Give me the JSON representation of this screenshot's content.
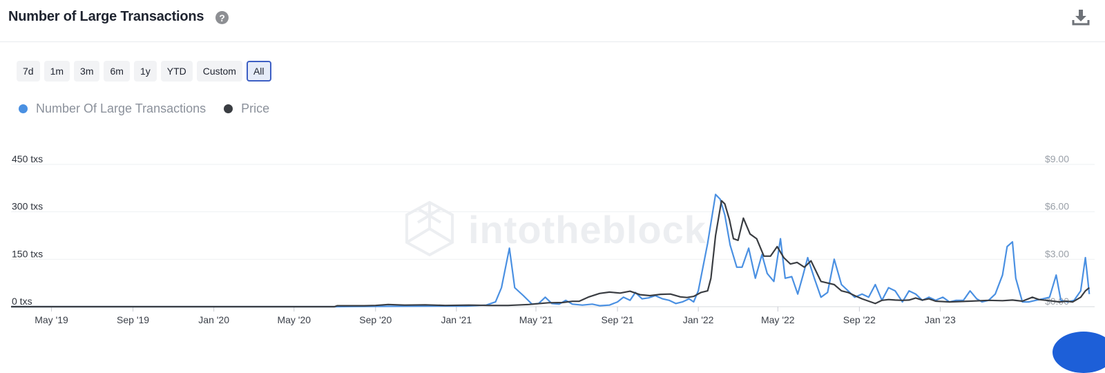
{
  "header": {
    "title": "Number of Large Transactions",
    "help_icon": "question-circle-icon",
    "download_icon": "download-icon"
  },
  "ranges": [
    "7d",
    "1m",
    "3m",
    "6m",
    "1y",
    "YTD",
    "Custom",
    "All"
  ],
  "active_range": "All",
  "colors": {
    "transactions": "#4a90e2",
    "price": "#3a3d42",
    "grid": "#eef0f3",
    "active_border": "#3d5fc4"
  },
  "watermark": "intotheblock",
  "chart_data": {
    "type": "line",
    "title": "Number of Large Transactions",
    "grid": true,
    "legend_placement": "top-left",
    "x_ticks": [
      "May '19",
      "Sep '19",
      "Jan '20",
      "May '20",
      "Sep '20",
      "Jan '21",
      "May '21",
      "Sep '21",
      "Jan '22",
      "May '22",
      "Sep '22",
      "Jan '23"
    ],
    "y_left": {
      "ticks": [
        "0 txs",
        "150 txs",
        "300 txs",
        "450 txs"
      ],
      "range": [
        0,
        450
      ]
    },
    "y_right": {
      "ticks": [
        "$0.00",
        "$3.00",
        "$6.00",
        "$9.00"
      ],
      "range": [
        0,
        9
      ]
    },
    "series": [
      {
        "name": "Number Of Large Transactions",
        "axis": "left",
        "color": "#4a90e2",
        "points": [
          [
            "2019-03-01",
            0
          ],
          [
            "2020-07-01",
            0
          ],
          [
            "2020-09-15",
            1
          ],
          [
            "2020-12-01",
            2
          ],
          [
            "2021-01-15",
            2
          ],
          [
            "2021-02-15",
            5
          ],
          [
            "2021-03-01",
            15
          ],
          [
            "2021-03-10",
            60
          ],
          [
            "2021-03-22",
            185
          ],
          [
            "2021-03-30",
            60
          ],
          [
            "2021-04-12",
            35
          ],
          [
            "2021-04-25",
            8
          ],
          [
            "2021-05-05",
            10
          ],
          [
            "2021-05-15",
            30
          ],
          [
            "2021-05-25",
            10
          ],
          [
            "2021-06-05",
            8
          ],
          [
            "2021-06-15",
            20
          ],
          [
            "2021-06-25",
            8
          ],
          [
            "2021-07-10",
            5
          ],
          [
            "2021-07-25",
            8
          ],
          [
            "2021-08-05",
            3
          ],
          [
            "2021-08-20",
            5
          ],
          [
            "2021-09-01",
            15
          ],
          [
            "2021-09-10",
            30
          ],
          [
            "2021-09-20",
            20
          ],
          [
            "2021-09-28",
            45
          ],
          [
            "2021-10-08",
            25
          ],
          [
            "2021-10-18",
            28
          ],
          [
            "2021-10-28",
            35
          ],
          [
            "2021-11-08",
            25
          ],
          [
            "2021-11-18",
            20
          ],
          [
            "2021-11-28",
            10
          ],
          [
            "2021-12-08",
            15
          ],
          [
            "2021-12-18",
            25
          ],
          [
            "2021-12-25",
            15
          ],
          [
            "2022-01-01",
            50
          ],
          [
            "2022-01-15",
            200
          ],
          [
            "2022-01-27",
            355
          ],
          [
            "2022-02-03",
            340
          ],
          [
            "2022-02-10",
            290
          ],
          [
            "2022-02-18",
            195
          ],
          [
            "2022-02-28",
            125
          ],
          [
            "2022-03-08",
            125
          ],
          [
            "2022-03-18",
            185
          ],
          [
            "2022-03-28",
            90
          ],
          [
            "2022-04-07",
            165
          ],
          [
            "2022-04-15",
            105
          ],
          [
            "2022-04-25",
            80
          ],
          [
            "2022-05-05",
            215
          ],
          [
            "2022-05-12",
            90
          ],
          [
            "2022-05-22",
            95
          ],
          [
            "2022-05-31",
            40
          ],
          [
            "2022-06-08",
            100
          ],
          [
            "2022-06-15",
            155
          ],
          [
            "2022-06-25",
            90
          ],
          [
            "2022-07-05",
            30
          ],
          [
            "2022-07-15",
            45
          ],
          [
            "2022-07-25",
            150
          ],
          [
            "2022-08-05",
            70
          ],
          [
            "2022-08-15",
            50
          ],
          [
            "2022-08-25",
            30
          ],
          [
            "2022-09-05",
            40
          ],
          [
            "2022-09-15",
            30
          ],
          [
            "2022-09-25",
            70
          ],
          [
            "2022-10-05",
            20
          ],
          [
            "2022-10-15",
            60
          ],
          [
            "2022-10-25",
            50
          ],
          [
            "2022-11-05",
            15
          ],
          [
            "2022-11-15",
            50
          ],
          [
            "2022-11-25",
            40
          ],
          [
            "2022-12-05",
            20
          ],
          [
            "2022-12-15",
            30
          ],
          [
            "2022-12-25",
            20
          ],
          [
            "2023-01-05",
            30
          ],
          [
            "2023-01-15",
            15
          ],
          [
            "2023-01-25",
            20
          ],
          [
            "2023-02-05",
            20
          ],
          [
            "2023-02-15",
            50
          ],
          [
            "2023-02-25",
            25
          ],
          [
            "2023-03-05",
            15
          ],
          [
            "2023-03-15",
            20
          ],
          [
            "2023-03-25",
            40
          ],
          [
            "2023-04-05",
            100
          ],
          [
            "2023-04-12",
            190
          ],
          [
            "2023-04-20",
            205
          ],
          [
            "2023-04-25",
            90
          ],
          [
            "2023-05-05",
            15
          ],
          [
            "2023-05-15",
            15
          ],
          [
            "2023-05-25",
            20
          ],
          [
            "2023-06-05",
            25
          ],
          [
            "2023-06-15",
            30
          ],
          [
            "2023-06-25",
            100
          ],
          [
            "2023-07-02",
            20
          ],
          [
            "2023-07-12",
            15
          ],
          [
            "2023-07-22",
            20
          ],
          [
            "2023-08-01",
            50
          ],
          [
            "2023-08-08",
            155
          ],
          [
            "2023-08-14",
            40
          ]
        ]
      },
      {
        "name": "Price",
        "axis": "right",
        "color": "#3a3d42",
        "points": [
          [
            "2019-03-01",
            0
          ],
          [
            "2020-07-01",
            0
          ],
          [
            "2020-07-05",
            0.06
          ],
          [
            "2020-08-15",
            0.06
          ],
          [
            "2020-09-01",
            0.08
          ],
          [
            "2020-09-20",
            0.14
          ],
          [
            "2020-10-15",
            0.1
          ],
          [
            "2020-11-15",
            0.12
          ],
          [
            "2020-12-15",
            0.08
          ],
          [
            "2021-01-20",
            0.1
          ],
          [
            "2021-02-20",
            0.08
          ],
          [
            "2021-03-20",
            0.08
          ],
          [
            "2021-04-20",
            0.14
          ],
          [
            "2021-05-20",
            0.25
          ],
          [
            "2021-06-10",
            0.26
          ],
          [
            "2021-06-25",
            0.34
          ],
          [
            "2021-07-05",
            0.34
          ],
          [
            "2021-07-20",
            0.62
          ],
          [
            "2021-08-05",
            0.84
          ],
          [
            "2021-08-20",
            0.92
          ],
          [
            "2021-09-05",
            0.86
          ],
          [
            "2021-09-20",
            0.98
          ],
          [
            "2021-10-05",
            0.76
          ],
          [
            "2021-10-20",
            0.7
          ],
          [
            "2021-11-05",
            0.78
          ],
          [
            "2021-11-20",
            0.8
          ],
          [
            "2021-12-05",
            0.62
          ],
          [
            "2021-12-15",
            0.58
          ],
          [
            "2021-12-25",
            0.65
          ],
          [
            "2022-01-05",
            0.9
          ],
          [
            "2022-01-15",
            1.0
          ],
          [
            "2022-01-20",
            1.8
          ],
          [
            "2022-01-27",
            4.5
          ],
          [
            "2022-02-05",
            6.7
          ],
          [
            "2022-02-10",
            6.5
          ],
          [
            "2022-02-17",
            5.5
          ],
          [
            "2022-02-23",
            4.3
          ],
          [
            "2022-03-02",
            4.2
          ],
          [
            "2022-03-10",
            5.6
          ],
          [
            "2022-03-20",
            4.6
          ],
          [
            "2022-03-30",
            4.3
          ],
          [
            "2022-04-10",
            3.2
          ],
          [
            "2022-04-20",
            3.2
          ],
          [
            "2022-04-30",
            3.8
          ],
          [
            "2022-05-10",
            3.1
          ],
          [
            "2022-05-20",
            2.7
          ],
          [
            "2022-05-30",
            2.8
          ],
          [
            "2022-06-10",
            2.5
          ],
          [
            "2022-06-20",
            2.9
          ],
          [
            "2022-07-05",
            1.6
          ],
          [
            "2022-07-15",
            1.5
          ],
          [
            "2022-07-25",
            1.4
          ],
          [
            "2022-08-05",
            1.0
          ],
          [
            "2022-08-15",
            0.9
          ],
          [
            "2022-08-25",
            0.7
          ],
          [
            "2022-09-05",
            0.5
          ],
          [
            "2022-09-15",
            0.35
          ],
          [
            "2022-09-25",
            0.2
          ],
          [
            "2022-10-05",
            0.4
          ],
          [
            "2022-10-15",
            0.45
          ],
          [
            "2022-10-25",
            0.42
          ],
          [
            "2022-11-05",
            0.4
          ],
          [
            "2022-11-15",
            0.42
          ],
          [
            "2022-11-25",
            0.55
          ],
          [
            "2022-12-05",
            0.42
          ],
          [
            "2022-12-15",
            0.5
          ],
          [
            "2022-12-25",
            0.35
          ],
          [
            "2023-01-15",
            0.3
          ],
          [
            "2023-02-15",
            0.35
          ],
          [
            "2023-03-15",
            0.4
          ],
          [
            "2023-04-05",
            0.38
          ],
          [
            "2023-04-20",
            0.42
          ],
          [
            "2023-05-05",
            0.35
          ],
          [
            "2023-05-20",
            0.6
          ],
          [
            "2023-05-30",
            0.45
          ],
          [
            "2023-06-15",
            0.38
          ],
          [
            "2023-06-30",
            0.3
          ],
          [
            "2023-07-10",
            0.35
          ],
          [
            "2023-07-20",
            0.3
          ],
          [
            "2023-08-01",
            0.6
          ],
          [
            "2023-08-08",
            1.0
          ],
          [
            "2023-08-14",
            1.2
          ]
        ]
      }
    ]
  }
}
